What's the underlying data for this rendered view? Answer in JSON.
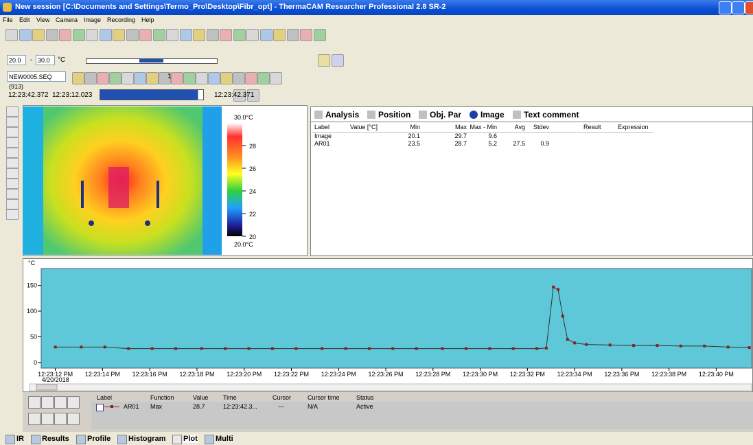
{
  "window": {
    "title": "New session [C:\\Documents and Settings\\Termo_Pro\\Desktop\\Fibr_opt] - ThermaCAM Researcher Professional 2.8 SR-2"
  },
  "menu": [
    "File",
    "Edit",
    "View",
    "Camera",
    "Image",
    "Recording",
    "Help"
  ],
  "toolbar": {
    "range_min": "20.0",
    "range_sep": "-",
    "range_max": "30.0",
    "range_unit": "°C",
    "sequence": "NEW0005.SEQ (913)",
    "step": "1",
    "time_start": "12:23:42.372",
    "time_current": "12:23:12.023",
    "time_end": "12:23:42.371"
  },
  "ir_image": {
    "scale_max": "30.0°C",
    "scale_min": "20.0°C",
    "scale_lim": [
      20,
      30
    ],
    "scale_ticks": [
      28,
      26,
      24,
      22,
      20
    ]
  },
  "analysis": {
    "tabs": [
      "Analysis",
      "Position",
      "Obj. Par",
      "Image",
      "Text comment"
    ],
    "columns": [
      "Label",
      "Value [°C]",
      "Min",
      "Max",
      "Max - Min",
      "Avg",
      "Stdev",
      "Result",
      "Expression"
    ],
    "rows": [
      {
        "label": "Image",
        "min": 20.1,
        "max": 29.7,
        "range": 9.6
      },
      {
        "label": "AR01",
        "min": 23.5,
        "max": 28.7,
        "range": 5.2,
        "avg": 27.5,
        "stdev": 0.9
      }
    ]
  },
  "plot": {
    "type": "line",
    "y_unit": "°C",
    "date": "4/20/2018",
    "xlim": [
      11.4,
      41.5
    ],
    "ylim": [
      -11,
      183
    ],
    "yticks": [
      0,
      50,
      100,
      150
    ],
    "xticks": [
      {
        "value": 12,
        "label": "12:23:12 PM"
      },
      {
        "value": 14,
        "label": "12:23:14 PM"
      },
      {
        "value": 16,
        "label": "12:23:16 PM"
      },
      {
        "value": 18,
        "label": "12:23:18 PM"
      },
      {
        "value": 20,
        "label": "12:23:20 PM"
      },
      {
        "value": 22,
        "label": "12:23:22 PM"
      },
      {
        "value": 24,
        "label": "12:23:24 PM"
      },
      {
        "value": 26,
        "label": "12:23:26 PM"
      },
      {
        "value": 28,
        "label": "12:23:28 PM"
      },
      {
        "value": 30,
        "label": "12:23:30 PM"
      },
      {
        "value": 32,
        "label": "12:23:32 PM"
      },
      {
        "value": 34,
        "label": "12:23:34 PM"
      },
      {
        "value": 36,
        "label": "12:23:36 PM"
      },
      {
        "value": 38,
        "label": "12:23:38 PM"
      },
      {
        "value": 40,
        "label": "12:23:40 PM"
      }
    ],
    "series": [
      {
        "name": "AR01",
        "color": "#8b2020",
        "x": [
          12.0,
          13.1,
          14.1,
          15.1,
          16.1,
          17.1,
          18.2,
          19.2,
          20.2,
          21.2,
          22.2,
          23.3,
          24.3,
          25.3,
          26.3,
          27.3,
          28.4,
          29.4,
          30.4,
          31.4,
          32.4,
          32.8,
          33.1,
          33.3,
          33.5,
          33.7,
          34.0,
          34.5,
          35.5,
          36.5,
          37.5,
          38.5,
          39.5,
          40.5,
          41.4
        ],
        "values": [
          30,
          30,
          30,
          27,
          27,
          27,
          27,
          27,
          27,
          27,
          27,
          27,
          27,
          27,
          27,
          27,
          27,
          27,
          27,
          27,
          27,
          28,
          147,
          142,
          90,
          45,
          38,
          35,
          34,
          33,
          33,
          32,
          32,
          30,
          29
        ]
      }
    ]
  },
  "legend_table": {
    "columns": [
      "Label",
      "Function",
      "Value",
      "Time",
      "Cursor",
      "Cursor time",
      "Status"
    ],
    "row": {
      "function": "Max",
      "value": 28.7,
      "time": "12:23:42.3...",
      "cursor": "---",
      "cursor_time": "N/A",
      "status": "Active"
    }
  },
  "tabs": [
    "IR",
    "Results",
    "Profile",
    "Histogram",
    "Plot",
    "Multi"
  ]
}
